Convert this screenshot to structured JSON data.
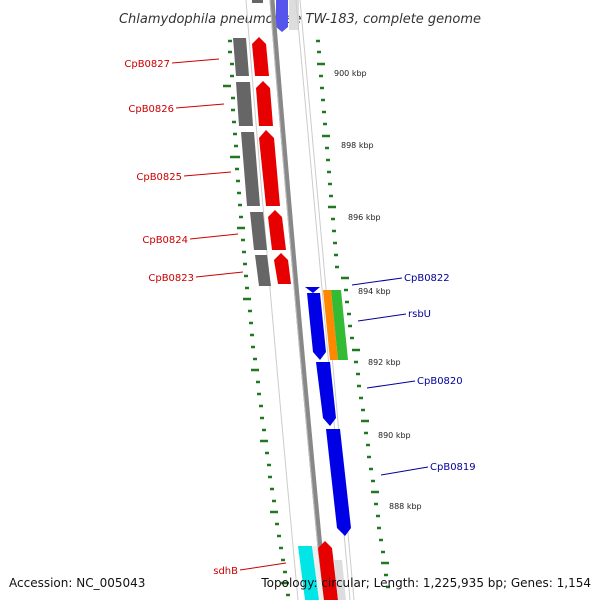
{
  "title": "Chlamydophila pneumoniae TW-183, complete genome",
  "accession": "Accession: NC_005043",
  "summary": "Topology: circular; Length: 1,225,935 bp; Genes: 1,154",
  "colors": {
    "forward_cds": "#0000e6",
    "reverse_cds": "#e60000",
    "gray_feature": "#666666",
    "orange_feature": "#ff8800",
    "green_feature": "#33bb33",
    "cyan_feature": "#00e6e6",
    "ticks": "#227722",
    "label_red": "#cc0000",
    "label_blue": "#000099",
    "backbone": "#888888"
  },
  "kbp_labels": [
    "900 kbp",
    "898 kbp",
    "896 kbp",
    "894 kbp",
    "892 kbp",
    "890 kbp",
    "888 kbp"
  ],
  "genes_reverse": [
    {
      "label": "CpB0827",
      "color": "red"
    },
    {
      "label": "CpB0826",
      "color": "red"
    },
    {
      "label": "CpB0825",
      "color": "red"
    },
    {
      "label": "CpB0824",
      "color": "red"
    },
    {
      "label": "CpB0823",
      "color": "red"
    },
    {
      "label": "sdhB",
      "color": "red"
    }
  ],
  "genes_forward": [
    {
      "label": "CpB0822",
      "color": "blue"
    },
    {
      "label": "rsbU",
      "color": "blue"
    },
    {
      "label": "CpB0820",
      "color": "blue"
    },
    {
      "label": "CpB0819",
      "color": "blue"
    }
  ]
}
